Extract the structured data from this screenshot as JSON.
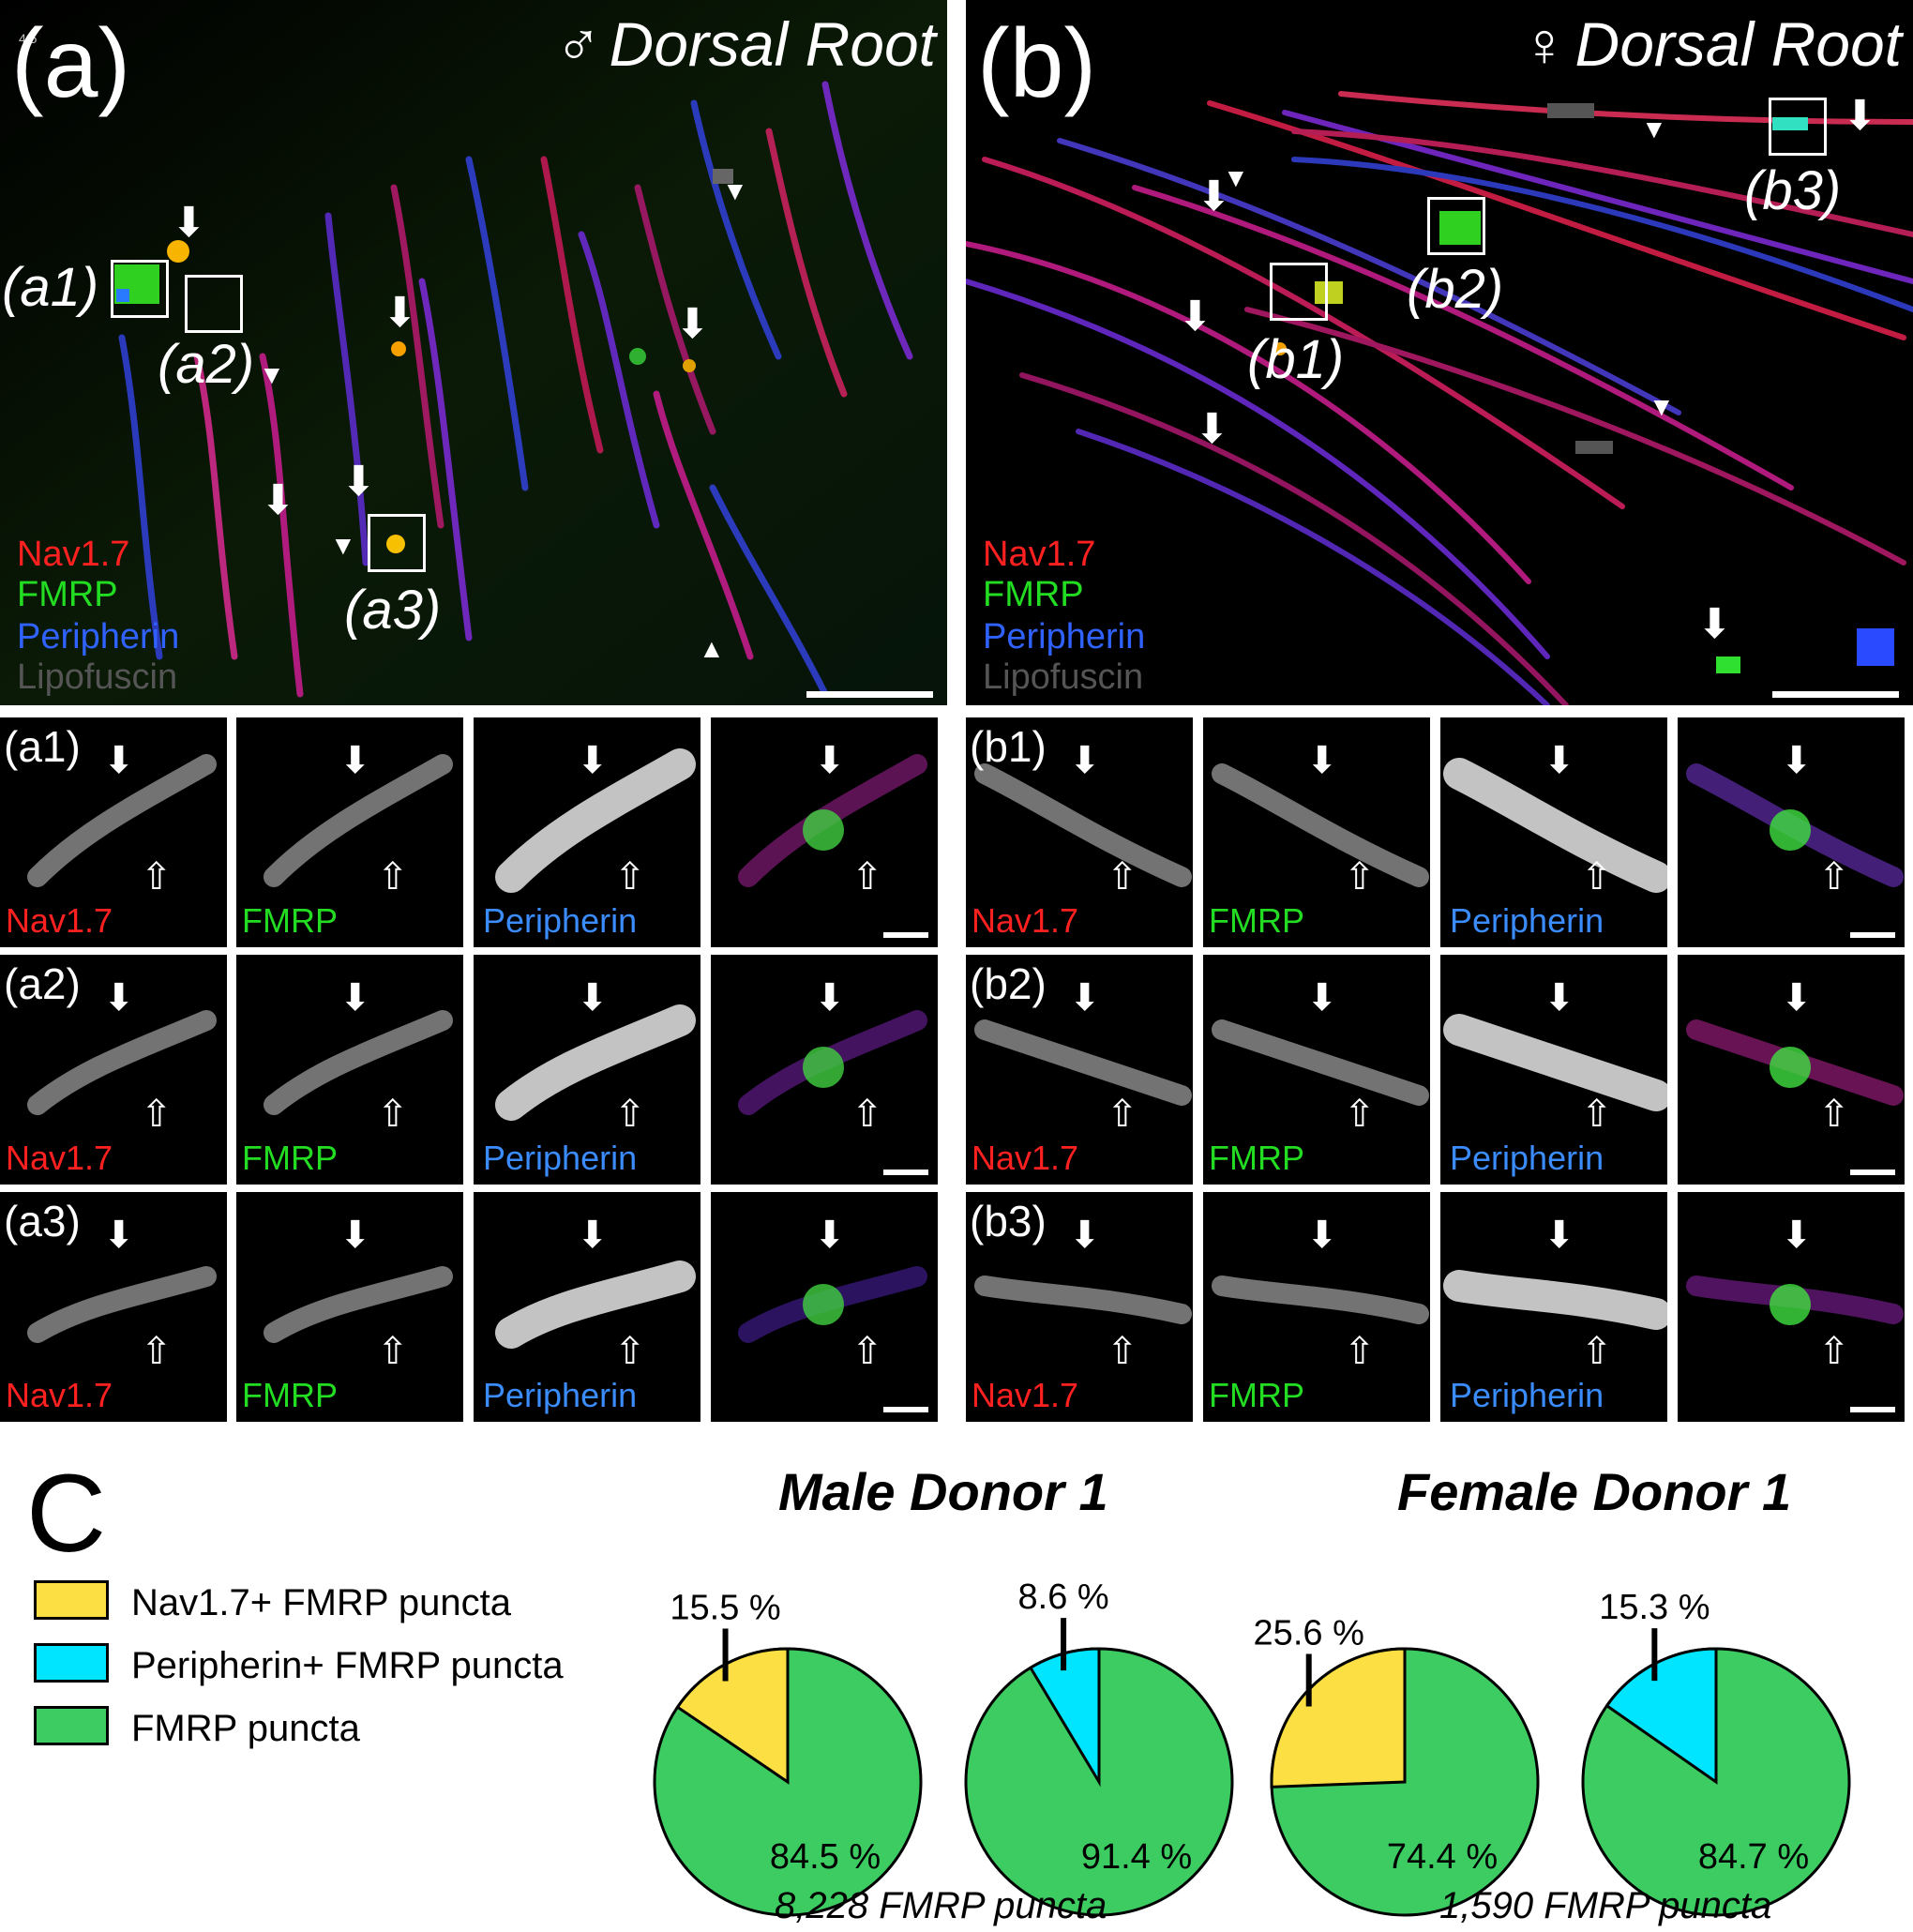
{
  "panel_a": {
    "label": "(a)",
    "sex_symbol": "♂",
    "title": "Dorsal Root",
    "corner_tag": "4 5",
    "legend": [
      "Nav1.7",
      "FMRP",
      "Peripherin",
      "Lipofuscin"
    ],
    "insets": [
      "(a1)",
      "(a2)",
      "(a3)"
    ]
  },
  "panel_b": {
    "label": "(b)",
    "sex_symbol": "♀",
    "title": "Dorsal Root",
    "legend": [
      "Nav1.7",
      "FMRP",
      "Peripherin",
      "Lipofuscin"
    ],
    "insets": [
      "(b1)",
      "(b2)",
      "(b3)"
    ]
  },
  "channels": [
    "Nav1.7",
    "FMRP",
    "Peripherin"
  ],
  "rows_a": [
    "(a1)",
    "(a2)",
    "(a3)"
  ],
  "rows_b": [
    "(b1)",
    "(b2)",
    "(b3)"
  ],
  "panel_c": {
    "label": "C",
    "legend": [
      {
        "label": "Nav1.7+ FMRP puncta",
        "color": "#fce043"
      },
      {
        "label": "Peripherin+ FMRP puncta",
        "color": "#00e5ff"
      },
      {
        "label": "FMRP puncta",
        "color": "#3ccc62"
      }
    ],
    "male": {
      "title": "Male Donor 1",
      "total": "8,228 FMRP puncta"
    },
    "female": {
      "title": "Female Donor 1",
      "total": "1,590 FMRP puncta"
    }
  },
  "chart_data": [
    {
      "type": "pie",
      "donor": "Male Donor 1",
      "slices": [
        {
          "label": "Nav1.7+ FMRP puncta",
          "value": 15.5,
          "color": "#fce043"
        },
        {
          "label": "FMRP puncta",
          "value": 84.5,
          "color": "#3ccc62"
        }
      ],
      "labels": [
        "15.5 %",
        "84.5 %"
      ]
    },
    {
      "type": "pie",
      "donor": "Male Donor 1",
      "slices": [
        {
          "label": "Peripherin+ FMRP puncta",
          "value": 8.6,
          "color": "#00e5ff"
        },
        {
          "label": "FMRP puncta",
          "value": 91.4,
          "color": "#3ccc62"
        }
      ],
      "labels": [
        "8.6 %",
        "91.4 %"
      ]
    },
    {
      "type": "pie",
      "donor": "Female Donor 1",
      "slices": [
        {
          "label": "Nav1.7+ FMRP puncta",
          "value": 25.6,
          "color": "#fce043"
        },
        {
          "label": "FMRP puncta",
          "value": 74.4,
          "color": "#3ccc62"
        }
      ],
      "labels": [
        "25.6 %",
        "74.4 %"
      ]
    },
    {
      "type": "pie",
      "donor": "Female Donor 1",
      "slices": [
        {
          "label": "Peripherin+ FMRP puncta",
          "value": 15.3,
          "color": "#00e5ff"
        },
        {
          "label": "FMRP puncta",
          "value": 84.7,
          "color": "#3ccc62"
        }
      ],
      "labels": [
        "15.3 %",
        "84.7 %"
      ]
    }
  ]
}
